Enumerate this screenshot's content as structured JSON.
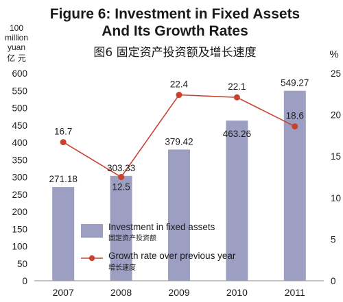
{
  "chart_data": {
    "type": "bar",
    "title": "Figure 6: Investment in Fixed Assets",
    "title_line2": "And Its Growth Rates",
    "title_zh": "图6  固定资产投资额及增长速度",
    "left_axis_unit": [
      "100",
      "million",
      "yuan"
    ],
    "left_axis_unit_zh": "亿 元",
    "right_axis_unit": "%",
    "categories": [
      "2007",
      "2008",
      "2009",
      "2010",
      "2011"
    ],
    "ylim": [
      0,
      600
    ],
    "y2lim": [
      0,
      25
    ],
    "y_ticks": [
      "0",
      "50",
      "100",
      "150",
      "200",
      "250",
      "300",
      "350",
      "400",
      "450",
      "500",
      "550",
      "600"
    ],
    "y2_ticks": [
      "0",
      "5",
      "10",
      "15",
      "20",
      "25"
    ],
    "grid": false,
    "legend_position": "bottom-center",
    "series": [
      {
        "name": "Investment in fixed assets",
        "name_zh": "固定资产投资额",
        "type": "bar",
        "axis": "left",
        "color": "#9c9fc2",
        "values": [
          271.18,
          303.33,
          379.42,
          463.26,
          549.27
        ],
        "labels": [
          "271.18",
          "303.33",
          "379.42",
          "463.26",
          "549.27"
        ]
      },
      {
        "name": "Growth rate over previous year",
        "name_zh": "增长速度",
        "type": "line",
        "axis": "right",
        "color": "#c7432e",
        "values": [
          16.7,
          12.5,
          22.4,
          22.1,
          18.6
        ],
        "labels": [
          "16.7",
          "12.5",
          "22.4",
          "22.1",
          "18.6"
        ]
      }
    ]
  }
}
